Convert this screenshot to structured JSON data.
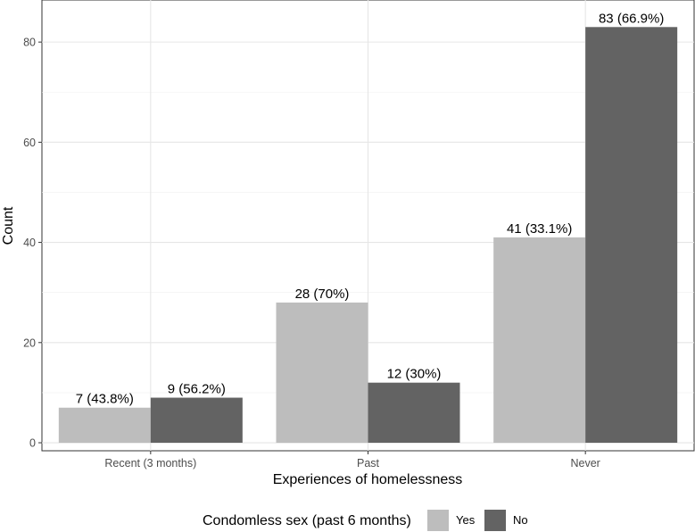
{
  "chart_data": {
    "type": "bar",
    "categories": [
      "Recent (3 months)",
      "Past",
      "Never"
    ],
    "series": [
      {
        "name": "Yes",
        "values": [
          7,
          28,
          41
        ],
        "labels": [
          "7 (43.8%)",
          "28 (70%)",
          "41 (33.1%)"
        ],
        "color": "#bdbdbd"
      },
      {
        "name": "No",
        "values": [
          9,
          12,
          83
        ],
        "labels": [
          "9 (56.2%)",
          "12 (30%)",
          "83 (66.9%)"
        ],
        "color": "#636363"
      }
    ],
    "xlabel": "Experiences of homelessness",
    "ylabel": "Count",
    "ylim": [
      -1.6,
      88.4
    ],
    "yticks": [
      0,
      20,
      40,
      60,
      80
    ],
    "grid": true,
    "legend": {
      "title": "Condomless sex (past 6 months)",
      "position": "bottom"
    }
  }
}
